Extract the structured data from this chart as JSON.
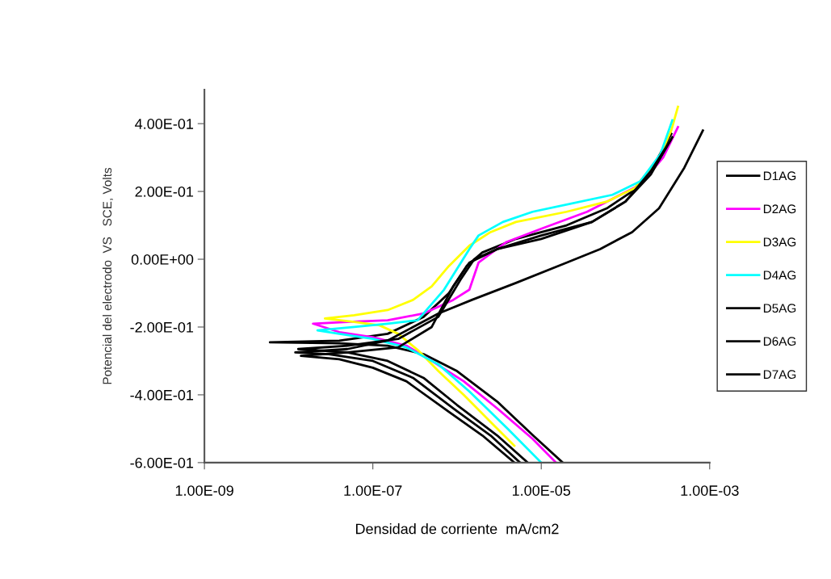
{
  "chart_data": {
    "type": "line",
    "xlabel": "Densidad de corriente  mA/cm2",
    "ylabel": "Potencial del electrodo  VS   SCE, Volts",
    "log": "x",
    "grid": false,
    "legend": "right",
    "marker": "none",
    "line_style": "solid",
    "xlim": [
      1e-09,
      0.001
    ],
    "xticks": [
      {
        "value": 1e-09,
        "label": "1.00E-09"
      },
      {
        "value": 1e-07,
        "label": "1.00E-07"
      },
      {
        "value": 1e-05,
        "label": "1.00E-05"
      },
      {
        "value": 0.001,
        "label": "1.00E-03"
      }
    ],
    "ylim": [
      -0.6,
      0.5
    ],
    "yticks": [
      {
        "value": -0.6,
        "label": "-6.00E-01"
      },
      {
        "value": -0.4,
        "label": "-4.00E-01"
      },
      {
        "value": -0.2,
        "label": "-2.00E-01"
      },
      {
        "value": 0,
        "label": "0.00E+00"
      },
      {
        "value": 0.2,
        "label": "2.00E-01"
      },
      {
        "value": 0.4,
        "label": "4.00E-01"
      }
    ],
    "series": [
      {
        "name": "D1AG",
        "color": "#000000",
        "x": [
          1.8e-05,
          8e-06,
          3e-06,
          1e-06,
          4e-07,
          1.5e-07,
          4e-08,
          6e-09,
          4e-08,
          1.5e-07,
          4e-07,
          8e-07,
          1.3e-06,
          2e-06,
          5e-06,
          2e-05,
          6e-05,
          0.00012,
          0.00022,
          0.00035
        ],
        "values": [
          -0.6,
          -0.52,
          -0.42,
          -0.33,
          -0.28,
          -0.255,
          -0.248,
          -0.245,
          -0.24,
          -0.22,
          -0.17,
          -0.1,
          -0.02,
          0.02,
          0.06,
          0.1,
          0.15,
          0.2,
          0.28,
          0.37
        ]
      },
      {
        "name": "D2AG",
        "color": "#ff00ff",
        "x": [
          1.5e-05,
          7.9e-06,
          3e-06,
          1.2e-06,
          5e-07,
          2.5e-07,
          1e-07,
          4e-08,
          1.95e-08,
          5e-08,
          1.5e-07,
          4e-07,
          9e-07,
          1.4e-06,
          1.8e-06,
          3.8e-06,
          1e-05,
          3.5e-05,
          0.00015,
          0.00028,
          0.00042
        ],
        "values": [
          -0.6,
          -0.53,
          -0.44,
          -0.36,
          -0.3,
          -0.255,
          -0.23,
          -0.215,
          -0.19,
          -0.185,
          -0.18,
          -0.16,
          -0.12,
          -0.09,
          -0.01,
          0.05,
          0.09,
          0.14,
          0.22,
          0.3,
          0.39
        ]
      },
      {
        "name": "D3AG",
        "color": "#ffff00",
        "x": [
          4.8e-06,
          2.5e-06,
          1.2e-06,
          6e-07,
          3.5e-07,
          2e-07,
          1.2e-07,
          6e-08,
          2.7e-08,
          6e-08,
          1.5e-07,
          3e-07,
          5e-07,
          8e-07,
          1.4e-06,
          2.5e-06,
          5e-06,
          2e-05,
          6e-05,
          0.00013,
          0.00025,
          0.00035,
          0.00042
        ],
        "values": [
          -0.55,
          -0.48,
          -0.4,
          -0.33,
          -0.27,
          -0.22,
          -0.195,
          -0.185,
          -0.175,
          -0.165,
          -0.15,
          -0.12,
          -0.08,
          -0.02,
          0.04,
          0.08,
          0.11,
          0.14,
          0.17,
          0.21,
          0.3,
          0.38,
          0.45
        ]
      },
      {
        "name": "D4AG",
        "color": "#00ffff",
        "x": [
          1e-05,
          4e-06,
          1.4e-06,
          6e-07,
          2.5e-07,
          1e-07,
          4e-08,
          2.2e-08,
          6e-08,
          1.5e-07,
          3.4e-07,
          7e-07,
          1.4e-06,
          1.8e-06,
          3.5e-06,
          7.9e-06,
          7e-05,
          0.00015,
          0.00026,
          0.00036
        ],
        "values": [
          -0.6,
          -0.5,
          -0.39,
          -0.31,
          -0.26,
          -0.235,
          -0.22,
          -0.21,
          -0.2,
          -0.19,
          -0.18,
          -0.09,
          0.03,
          0.07,
          0.11,
          0.14,
          0.19,
          0.23,
          0.31,
          0.41
        ]
      },
      {
        "name": "D5AG",
        "color": "#000000",
        "x": [
          6.9e-06,
          3e-06,
          1e-06,
          4e-07,
          1.5e-07,
          5e-08,
          1.3e-08,
          5e-08,
          2e-07,
          6e-07,
          1.1e-06,
          1.6e-06,
          3e-06,
          1e-05,
          4e-05,
          0.0001,
          0.0002,
          0.00036
        ],
        "values": [
          -0.6,
          -0.52,
          -0.43,
          -0.35,
          -0.3,
          -0.275,
          -0.265,
          -0.255,
          -0.235,
          -0.17,
          -0.06,
          0.0,
          0.03,
          0.07,
          0.11,
          0.17,
          0.25,
          0.36
        ]
      },
      {
        "name": "D6AG",
        "color": "#000000",
        "x": [
          4.8e-06,
          2e-06,
          7e-07,
          2.5e-07,
          1e-07,
          4e-08,
          1.4e-08,
          5e-08,
          2e-07,
          5e-07,
          9e-07,
          1.4e-06,
          3e-06,
          1e-05,
          4e-05,
          0.0001,
          0.0002,
          0.00034
        ],
        "values": [
          -0.6,
          -0.52,
          -0.44,
          -0.36,
          -0.32,
          -0.295,
          -0.285,
          -0.275,
          -0.26,
          -0.2,
          -0.08,
          -0.01,
          0.03,
          0.06,
          0.11,
          0.17,
          0.26,
          0.35
        ]
      },
      {
        "name": "D7AG",
        "color": "#000000",
        "x": [
          5.6e-06,
          2.5e-06,
          9e-07,
          3e-07,
          1e-07,
          3e-08,
          1.2e-08,
          5e-08,
          1.5e-07,
          3e-07,
          6e-07,
          1.5e-06,
          5e-06,
          2e-05,
          5e-05,
          0.00012,
          0.00025,
          0.0005,
          0.00083
        ],
        "values": [
          -0.6,
          -0.52,
          -0.44,
          -0.35,
          -0.3,
          -0.28,
          -0.275,
          -0.265,
          -0.24,
          -0.2,
          -0.16,
          -0.12,
          -0.07,
          -0.01,
          0.03,
          0.08,
          0.15,
          0.27,
          0.38
        ]
      }
    ]
  }
}
